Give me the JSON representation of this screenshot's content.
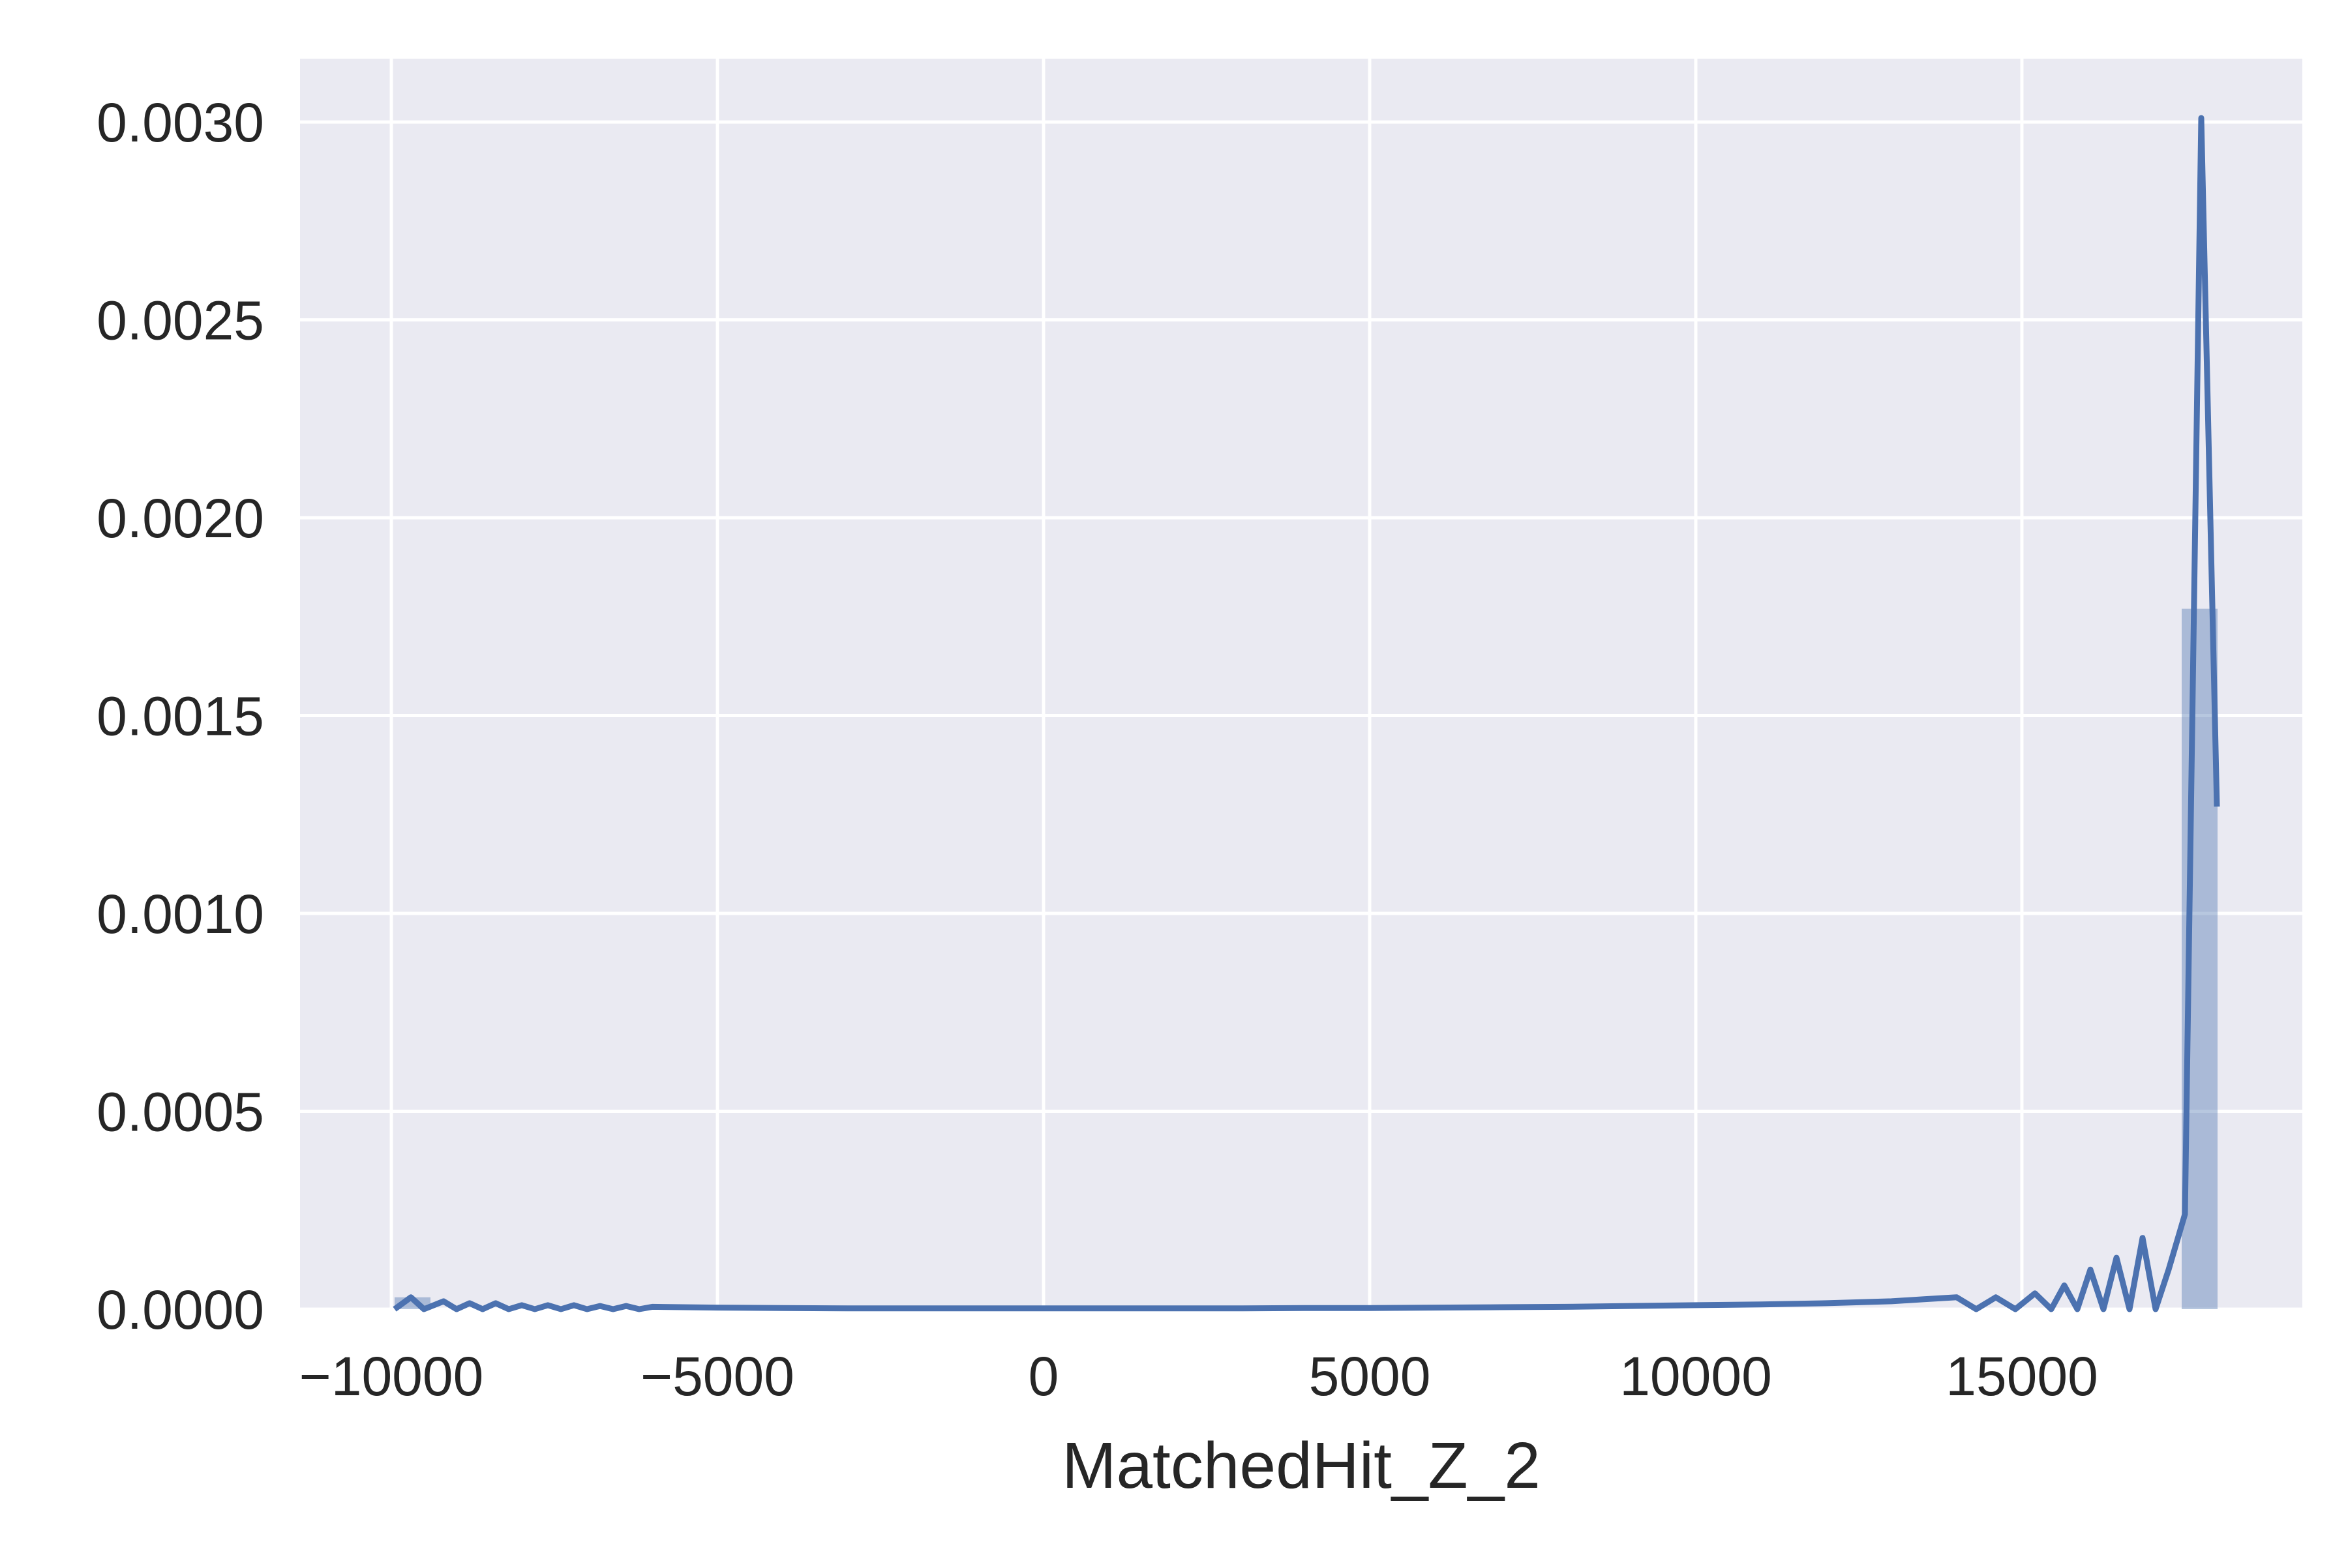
{
  "chart_data": {
    "type": "histogram+kde",
    "title": "",
    "xlabel": "MatchedHit_Z_2",
    "ylabel": "",
    "xlim": [
      -11400,
      19300
    ],
    "ylim": [
      0,
      0.00316
    ],
    "x_ticks": [
      -10000,
      -5000,
      0,
      5000,
      10000,
      15000
    ],
    "x_tick_labels": [
      "−10000",
      "−5000",
      "0",
      "5000",
      "10000",
      "15000"
    ],
    "y_ticks": [
      0,
      0.0005,
      0.001,
      0.0015,
      0.002,
      0.0025,
      0.003
    ],
    "y_tick_labels": [
      "0.0000",
      "0.0005",
      "0.0010",
      "0.0015",
      "0.0020",
      "0.0025",
      "0.0030"
    ],
    "grid": true,
    "colors": {
      "background": "#eaeaf2",
      "grid": "#ffffff",
      "line": "#4c72b0",
      "bar": "#4c72b0"
    },
    "series": [
      {
        "type": "histogram",
        "bins": [
          {
            "x0": -9950,
            "x1": -9400,
            "value": 3e-05
          },
          {
            "x0": 17450,
            "x1": 18000,
            "value": 0.00177
          }
        ]
      },
      {
        "type": "kde",
        "x": [
          -9950,
          -9700,
          -9500,
          -9200,
          -9000,
          -8800,
          -8600,
          -8400,
          -8200,
          -8000,
          -7800,
          -7600,
          -7400,
          -7200,
          -7000,
          -6800,
          -6600,
          -6400,
          -6200,
          -6000,
          -5000,
          -4000,
          -3000,
          -2000,
          -1000,
          0,
          1000,
          2000,
          3000,
          4000,
          5000,
          6000,
          7000,
          8000,
          9000,
          10000,
          11000,
          12000,
          13000,
          13500,
          14000,
          14300,
          14600,
          14900,
          15200,
          15450,
          15650,
          15850,
          16050,
          16250,
          16450,
          16650,
          16850,
          17050,
          17250,
          17500,
          17750,
          17990
        ],
        "y": [
          0,
          3e-05,
          0,
          2e-05,
          0,
          1.5e-05,
          0,
          1.5e-05,
          0,
          1e-05,
          0,
          1e-05,
          0,
          1e-05,
          0,
          8e-06,
          0,
          8e-06,
          0,
          6e-06,
          4e-06,
          3e-06,
          2e-06,
          2e-06,
          2e-06,
          2e-06,
          2e-06,
          2e-06,
          2e-06,
          3e-06,
          3e-06,
          4e-06,
          5e-06,
          6e-06,
          8e-06,
          1e-05,
          1.2e-05,
          1.5e-05,
          2e-05,
          2.5e-05,
          3e-05,
          0,
          3e-05,
          0,
          4e-05,
          0,
          6e-05,
          0,
          0.0001,
          0,
          0.00013,
          0,
          0.00018,
          0,
          0.0001,
          0.00024,
          0.00301,
          0.00127
        ]
      }
    ]
  }
}
